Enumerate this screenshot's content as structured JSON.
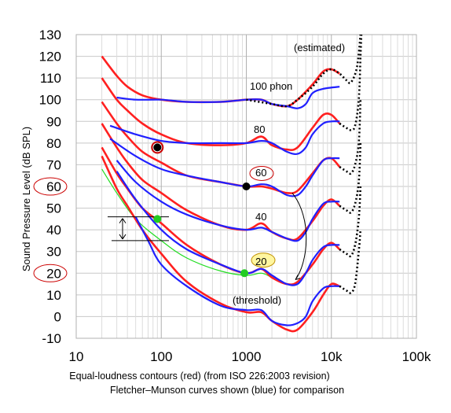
{
  "chart_data": {
    "type": "line",
    "x_scale": "log",
    "xlim": [
      10,
      100000
    ],
    "ylim": [
      -10,
      130
    ],
    "x_tick_labels": [
      "10",
      "100",
      "1000",
      "10k",
      "100k"
    ],
    "x_tick_values": [
      10,
      100,
      1000,
      10000,
      100000
    ],
    "y_ticks": [
      -10,
      0,
      10,
      20,
      30,
      40,
      50,
      60,
      70,
      80,
      90,
      100,
      110,
      120,
      130
    ],
    "ylabel": "Sound Pressure Level (dB SPL)",
    "grid": true,
    "caption_line1": "Equal-loudness contours (red) (from ISO 226:2003 revision)",
    "caption_line2": "Fletcher–Munson curves shown (blue) for comparison",
    "annotations": {
      "estimated": "(estimated)",
      "phon100": "100 phon",
      "phon80": "80",
      "phon60": "60",
      "phon40": "40",
      "phon20": "20",
      "threshold": "(threshold)"
    },
    "colors": {
      "iso": "#ff2020",
      "fletcher": "#2020ff",
      "estimated": "#000000",
      "green": "#22dd22",
      "circle": "#cc0000"
    },
    "series": [
      {
        "group": "iso-red",
        "points": [
          [
            20,
            120
          ],
          [
            30,
            111
          ],
          [
            40,
            106
          ],
          [
            60,
            102
          ],
          [
            100,
            100
          ],
          [
            200,
            99
          ],
          [
            500,
            99
          ],
          [
            1000,
            100
          ],
          [
            1500,
            100
          ],
          [
            2000,
            98
          ],
          [
            3000,
            97
          ],
          [
            4000,
            100
          ],
          [
            6000,
            107
          ],
          [
            8000,
            113
          ],
          [
            10000,
            114
          ],
          [
            12500,
            112
          ]
        ]
      },
      {
        "group": "iso-red",
        "points": [
          [
            20,
            110
          ],
          [
            30,
            100
          ],
          [
            40,
            95
          ],
          [
            60,
            89
          ],
          [
            100,
            84
          ],
          [
            200,
            80
          ],
          [
            500,
            79
          ],
          [
            1000,
            80
          ],
          [
            1500,
            83
          ],
          [
            2000,
            79
          ],
          [
            3000,
            77
          ],
          [
            4000,
            78
          ],
          [
            6000,
            87
          ],
          [
            8000,
            93
          ],
          [
            10000,
            93
          ],
          [
            12500,
            89
          ]
        ]
      },
      {
        "group": "iso-red",
        "points": [
          [
            20,
            99
          ],
          [
            30,
            89
          ],
          [
            40,
            83
          ],
          [
            60,
            76
          ],
          [
            100,
            71
          ],
          [
            200,
            65
          ],
          [
            500,
            62
          ],
          [
            1000,
            60
          ],
          [
            1500,
            60
          ],
          [
            2000,
            59
          ],
          [
            3000,
            57
          ],
          [
            4000,
            58
          ],
          [
            6000,
            66
          ],
          [
            8000,
            72
          ],
          [
            10000,
            73
          ],
          [
            12500,
            69
          ]
        ]
      },
      {
        "group": "iso-red",
        "points": [
          [
            20,
            89
          ],
          [
            30,
            78
          ],
          [
            40,
            71
          ],
          [
            60,
            63
          ],
          [
            100,
            57
          ],
          [
            200,
            49
          ],
          [
            500,
            42
          ],
          [
            1000,
            40
          ],
          [
            1500,
            43
          ],
          [
            2000,
            39
          ],
          [
            3000,
            36
          ],
          [
            4000,
            36
          ],
          [
            6000,
            44
          ],
          [
            8000,
            51
          ],
          [
            10000,
            54
          ],
          [
            12500,
            51
          ]
        ]
      },
      {
        "group": "iso-red",
        "points": [
          [
            20,
            78
          ],
          [
            30,
            66
          ],
          [
            40,
            59
          ],
          [
            60,
            50
          ],
          [
            100,
            43
          ],
          [
            200,
            33
          ],
          [
            500,
            24
          ],
          [
            1000,
            20
          ],
          [
            1500,
            22
          ],
          [
            2000,
            18
          ],
          [
            3000,
            15
          ],
          [
            4000,
            16
          ],
          [
            6000,
            24
          ],
          [
            8000,
            31
          ],
          [
            10000,
            34
          ],
          [
            12500,
            31
          ]
        ]
      },
      {
        "group": "iso-red",
        "points": [
          [
            20,
            74
          ],
          [
            30,
            59
          ],
          [
            40,
            51
          ],
          [
            60,
            40
          ],
          [
            100,
            29
          ],
          [
            200,
            16
          ],
          [
            500,
            6
          ],
          [
            1000,
            2
          ],
          [
            1500,
            2
          ],
          [
            2000,
            -2
          ],
          [
            3000,
            -6
          ],
          [
            4000,
            -6
          ],
          [
            6000,
            2
          ],
          [
            8000,
            10
          ],
          [
            10000,
            15
          ],
          [
            12500,
            14
          ]
        ]
      },
      {
        "group": "fletcher-blue",
        "points": [
          [
            30,
            101
          ],
          [
            50,
            100
          ],
          [
            100,
            100
          ],
          [
            200,
            99
          ],
          [
            500,
            99
          ],
          [
            1000,
            100
          ],
          [
            1500,
            100
          ],
          [
            2000,
            98
          ],
          [
            3000,
            97
          ],
          [
            4000,
            96
          ],
          [
            5000,
            98
          ],
          [
            6000,
            103
          ],
          [
            8000,
            105
          ],
          [
            12500,
            106
          ]
        ]
      },
      {
        "group": "fletcher-blue",
        "points": [
          [
            25,
            88
          ],
          [
            50,
            84
          ],
          [
            100,
            81
          ],
          [
            200,
            80
          ],
          [
            500,
            80
          ],
          [
            1000,
            80
          ],
          [
            1500,
            81
          ],
          [
            2000,
            80
          ],
          [
            3000,
            76
          ],
          [
            4000,
            75
          ],
          [
            5000,
            78
          ],
          [
            6000,
            84
          ],
          [
            8000,
            89
          ],
          [
            10000,
            90
          ],
          [
            12500,
            90
          ]
        ]
      },
      {
        "group": "fletcher-blue",
        "points": [
          [
            25,
            82
          ],
          [
            50,
            74
          ],
          [
            100,
            68
          ],
          [
            200,
            65
          ],
          [
            500,
            62
          ],
          [
            1000,
            60
          ],
          [
            1500,
            61
          ],
          [
            2000,
            60
          ],
          [
            3000,
            56
          ],
          [
            4000,
            56
          ],
          [
            5000,
            60
          ],
          [
            6000,
            65
          ],
          [
            8000,
            72
          ],
          [
            10000,
            73
          ],
          [
            12500,
            73
          ]
        ]
      },
      {
        "group": "fletcher-blue",
        "points": [
          [
            30,
            72
          ],
          [
            50,
            62
          ],
          [
            100,
            53
          ],
          [
            200,
            47
          ],
          [
            500,
            42
          ],
          [
            1000,
            40
          ],
          [
            1500,
            41
          ],
          [
            2000,
            39
          ],
          [
            3000,
            36
          ],
          [
            4000,
            35
          ],
          [
            5000,
            39
          ],
          [
            6000,
            45
          ],
          [
            8000,
            52
          ],
          [
            10000,
            53
          ],
          [
            12500,
            53
          ]
        ]
      },
      {
        "group": "fletcher-blue",
        "points": [
          [
            30,
            67
          ],
          [
            50,
            54
          ],
          [
            100,
            40
          ],
          [
            200,
            31
          ],
          [
            500,
            24
          ],
          [
            1000,
            20
          ],
          [
            1500,
            22
          ],
          [
            2000,
            19
          ],
          [
            3000,
            15
          ],
          [
            4000,
            15
          ],
          [
            5000,
            20
          ],
          [
            6000,
            26
          ],
          [
            8000,
            32
          ],
          [
            10000,
            33
          ],
          [
            12500,
            33
          ]
        ]
      },
      {
        "group": "fletcher-blue",
        "points": [
          [
            50,
            46
          ],
          [
            70,
            35
          ],
          [
            100,
            24
          ],
          [
            200,
            14
          ],
          [
            500,
            5
          ],
          [
            1000,
            3
          ],
          [
            1500,
            3
          ],
          [
            2000,
            -2
          ],
          [
            3000,
            -4
          ],
          [
            4000,
            -3
          ],
          [
            5000,
            0
          ],
          [
            6000,
            7
          ],
          [
            8000,
            13
          ],
          [
            10000,
            14
          ],
          [
            12500,
            14
          ]
        ]
      },
      {
        "group": "estimated-dotted",
        "points": [
          [
            1000,
            100
          ],
          [
            2000,
            98
          ],
          [
            3000,
            97
          ],
          [
            4000,
            100
          ],
          [
            6000,
            106
          ],
          [
            8000,
            112
          ],
          [
            10000,
            114
          ],
          [
            12500,
            112
          ],
          [
            15000,
            109
          ],
          [
            17000,
            108
          ],
          [
            20000,
            115
          ],
          [
            22000,
            130
          ]
        ]
      },
      {
        "group": "estimated-dotted",
        "points": [
          [
            12500,
            89
          ],
          [
            15000,
            87
          ],
          [
            17000,
            86
          ],
          [
            19000,
            88
          ],
          [
            21000,
            100
          ],
          [
            22000,
            120
          ],
          [
            22500,
            130
          ]
        ]
      },
      {
        "group": "estimated-dotted",
        "points": [
          [
            12500,
            69
          ],
          [
            15000,
            67
          ],
          [
            17000,
            66
          ],
          [
            19000,
            70
          ],
          [
            21000,
            80
          ],
          [
            22000,
            100
          ]
        ]
      },
      {
        "group": "estimated-dotted",
        "points": [
          [
            12500,
            51
          ],
          [
            15000,
            49
          ],
          [
            17000,
            48
          ],
          [
            19000,
            52
          ],
          [
            21000,
            62
          ],
          [
            22000,
            80
          ]
        ]
      },
      {
        "group": "estimated-dotted",
        "points": [
          [
            12500,
            31
          ],
          [
            15000,
            29
          ],
          [
            17000,
            28
          ],
          [
            19000,
            33
          ],
          [
            21000,
            45
          ],
          [
            22000,
            60
          ]
        ]
      },
      {
        "group": "estimated-dotted",
        "points": [
          [
            12500,
            14
          ],
          [
            15000,
            12
          ],
          [
            17000,
            11
          ],
          [
            19000,
            15
          ],
          [
            21000,
            30
          ],
          [
            22000,
            40
          ]
        ]
      },
      {
        "group": "green",
        "points": [
          [
            20,
            68
          ],
          [
            30,
            57
          ],
          [
            50,
            45
          ],
          [
            100,
            35
          ],
          [
            200,
            27
          ],
          [
            500,
            21
          ],
          [
            1000,
            19
          ],
          [
            1500,
            20
          ],
          [
            2000,
            18
          ],
          [
            3000,
            15
          ],
          [
            4000,
            15
          ]
        ]
      }
    ],
    "markers": [
      {
        "x": 90,
        "y": 78,
        "fill": "#000000",
        "ring": true
      },
      {
        "x": 1000,
        "y": 60,
        "fill": "#000000",
        "ring": false
      },
      {
        "x": 90,
        "y": 45,
        "fill": "#22cc22",
        "ring": false
      },
      {
        "x": 950,
        "y": 20,
        "fill": "#22cc22",
        "ring": false
      }
    ],
    "circled_labels": [
      "60",
      "20"
    ]
  }
}
